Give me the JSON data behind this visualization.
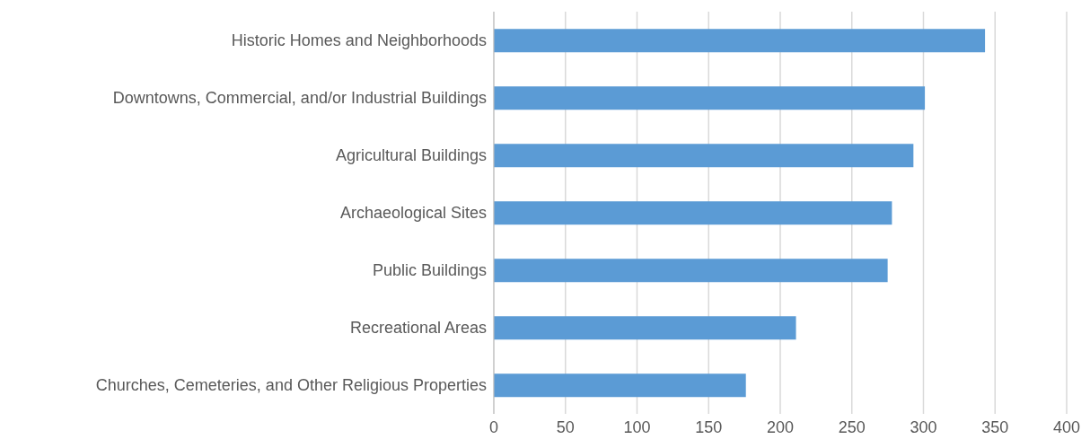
{
  "chart_data": {
    "type": "bar",
    "orientation": "horizontal",
    "categories": [
      "Historic Homes and Neighborhoods",
      "Downtowns, Commercial, and/or Industrial Buildings",
      "Agricultural Buildings",
      "Archaeological Sites",
      "Public Buildings",
      "Recreational Areas",
      "Churches, Cemeteries, and Other Religious Properties"
    ],
    "values": [
      343,
      301,
      293,
      278,
      275,
      211,
      176
    ],
    "color": "#5b9bd5",
    "xlim": [
      0,
      400
    ],
    "xticks": [
      0,
      50,
      100,
      150,
      200,
      250,
      300,
      350,
      400
    ],
    "grid": "x",
    "legend": false
  }
}
